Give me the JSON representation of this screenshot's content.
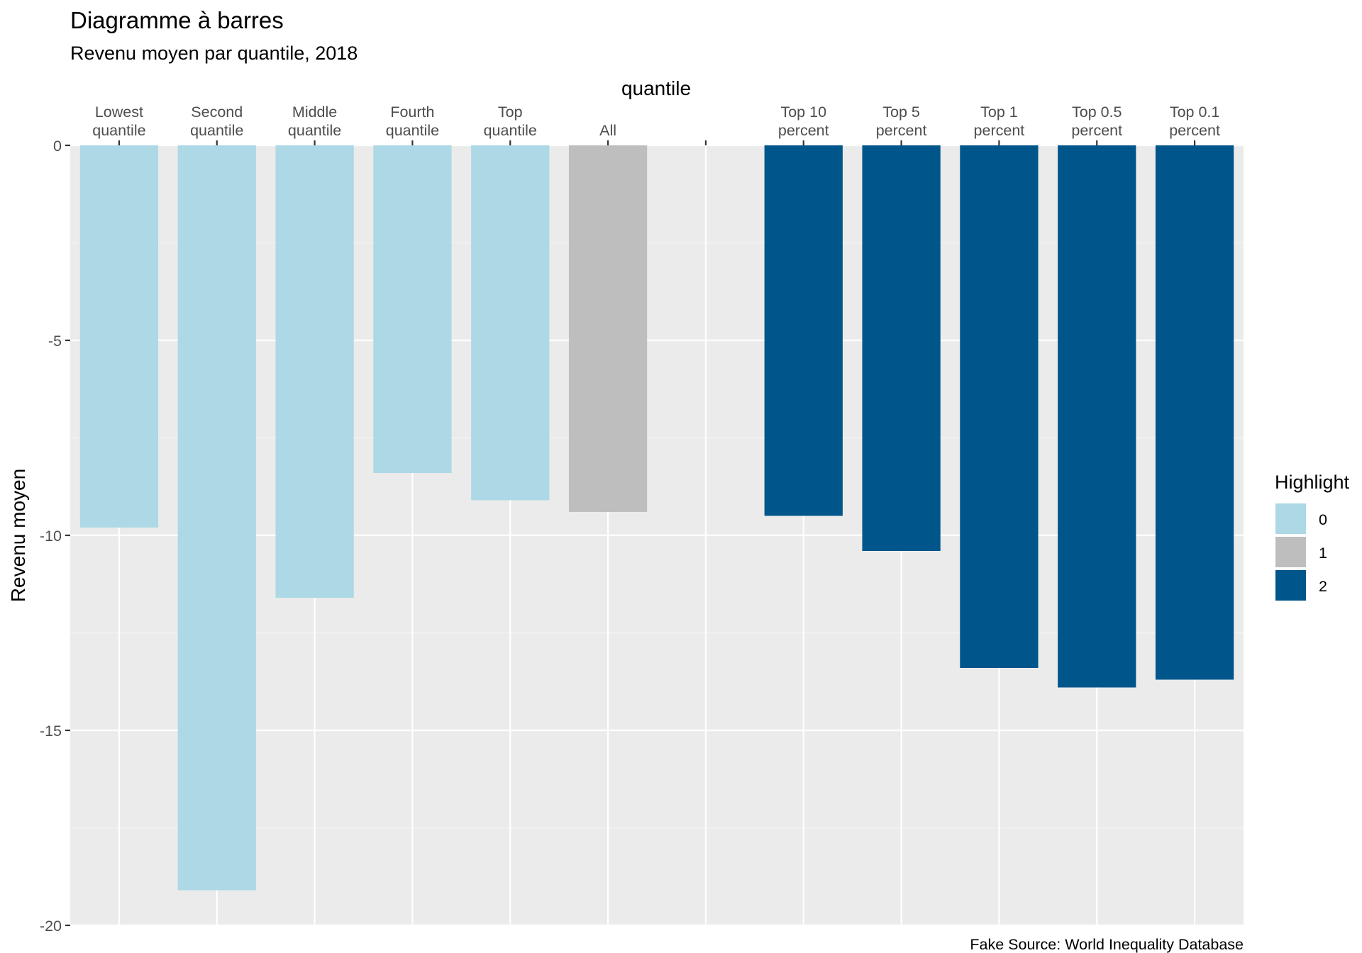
{
  "chart_data": {
    "type": "bar",
    "title": "Diagramme à barres",
    "subtitle": "Revenu moyen par quantile, 2018",
    "xlabel": "quantile",
    "ylabel": "Revenu moyen",
    "caption": "Fake Source: World Inequality Database",
    "x_axis_position": "top",
    "categories": [
      [
        "Lowest",
        "quantile"
      ],
      [
        "Second",
        "quantile"
      ],
      [
        "Middle",
        "quantile"
      ],
      [
        "Fourth",
        "quantile"
      ],
      [
        "Top",
        "quantile"
      ],
      [
        "All"
      ],
      [
        ""
      ],
      [
        "Top 10",
        "percent"
      ],
      [
        "Top 5",
        "percent"
      ],
      [
        "Top 1",
        "percent"
      ],
      [
        "Top 0.5",
        "percent"
      ],
      [
        "Top 0.1",
        "percent"
      ]
    ],
    "values": [
      -9.8,
      -19.1,
      -11.6,
      -8.4,
      -9.1,
      -9.4,
      null,
      -9.5,
      -10.4,
      -13.4,
      -13.9,
      -13.7
    ],
    "highlight": [
      "0",
      "0",
      "0",
      "0",
      "0",
      "1",
      null,
      "2",
      "2",
      "2",
      "2",
      "2"
    ],
    "ylim": [
      -20,
      0
    ],
    "yticks": [
      0,
      -5,
      -10,
      -15,
      -20
    ],
    "ytick_labels": [
      "0",
      "-5",
      "-10",
      "-15",
      "-20"
    ],
    "grid": true,
    "legend": {
      "title": "Highlight",
      "position": "right",
      "entries": [
        {
          "label": "0",
          "color": "#add8e6"
        },
        {
          "label": "1",
          "color": "#bebebe"
        },
        {
          "label": "2",
          "color": "#00558b"
        }
      ]
    },
    "colors": {
      "panel_background": "#ebebeb",
      "grid_major": "#ffffff",
      "grid_minor": "#f5f5f5"
    }
  }
}
